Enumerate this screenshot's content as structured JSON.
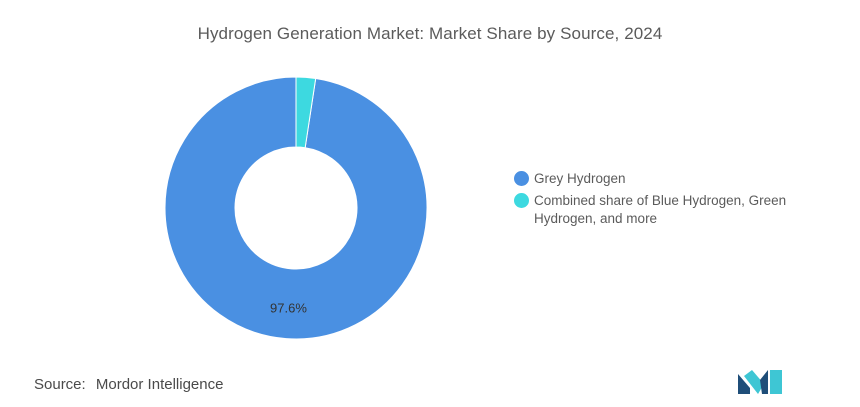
{
  "chart_data": {
    "type": "pie",
    "donut": true,
    "title": "Hydrogen Generation Market: Market Share by Source, 2024",
    "categories": [
      "Grey Hydrogen",
      "Combined share of Blue Hydrogen, Green Hydrogen, and more"
    ],
    "values": [
      97.6,
      2.4
    ],
    "data_labels": [
      "97.6%",
      ""
    ],
    "colors": [
      "#4a90e2",
      "#3dd9e0"
    ],
    "legend_placement": "right"
  },
  "source": {
    "key": "Source:",
    "value": "Mordor Intelligence"
  },
  "logo": {
    "icon": "mordor-intelligence-logo-icon",
    "colors": [
      "#1f4e79",
      "#3ec6d4"
    ]
  }
}
